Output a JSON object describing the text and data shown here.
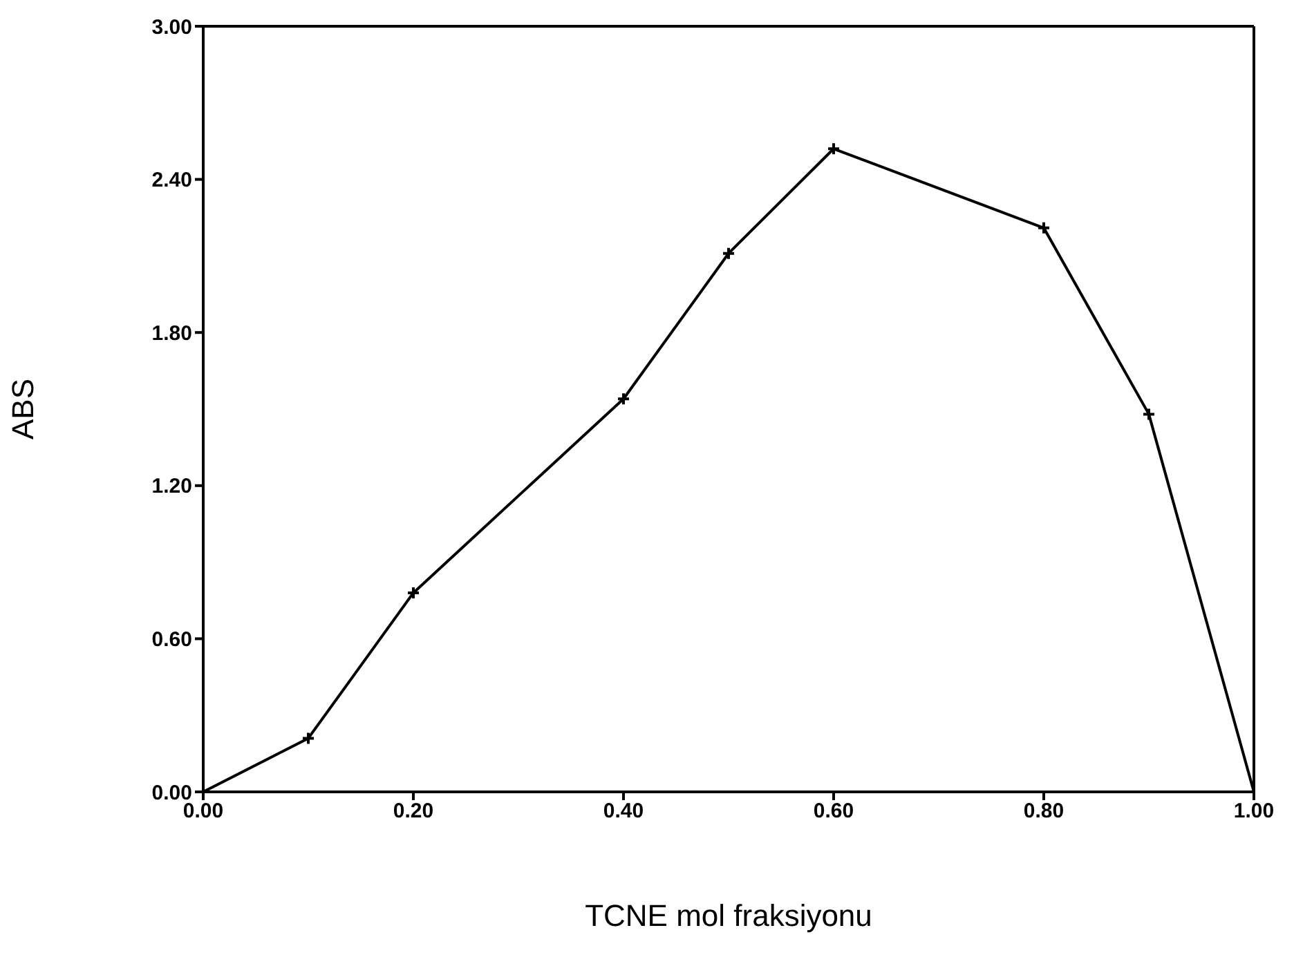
{
  "chart_data": {
    "type": "line",
    "xlabel": "TCNE mol fraksiyonu",
    "ylabel": "ABS",
    "x": [
      0,
      0.1,
      0.2,
      0.4,
      0.5,
      0.6,
      0.8,
      0.9,
      1.0
    ],
    "series": [
      {
        "color": "#000000",
        "values": [
          0,
          0.21,
          0.78,
          1.54,
          2.11,
          2.52,
          2.21,
          1.48,
          0
        ]
      }
    ],
    "xlim": [
      0,
      1
    ],
    "xticks": [
      {
        "value": 0,
        "label": "0.00"
      },
      {
        "value": 0.2,
        "label": "0.20"
      },
      {
        "value": 0.4,
        "label": "0.40"
      },
      {
        "value": 0.6,
        "label": "0.60"
      },
      {
        "value": 0.8,
        "label": "0.80"
      },
      {
        "value": 1,
        "label": "1.00"
      }
    ],
    "ylim": [
      0,
      3
    ],
    "yticks": [
      {
        "value": 0,
        "label": "0.00"
      },
      {
        "value": 0.6,
        "label": "0.60"
      },
      {
        "value": 1.2,
        "label": "1.20"
      },
      {
        "value": 1.8,
        "label": "1.80"
      },
      {
        "value": 2.4,
        "label": "2.40"
      },
      {
        "value": 3,
        "label": "3.00"
      }
    ],
    "grid": false,
    "marker": "cross",
    "line_style": "solid"
  }
}
